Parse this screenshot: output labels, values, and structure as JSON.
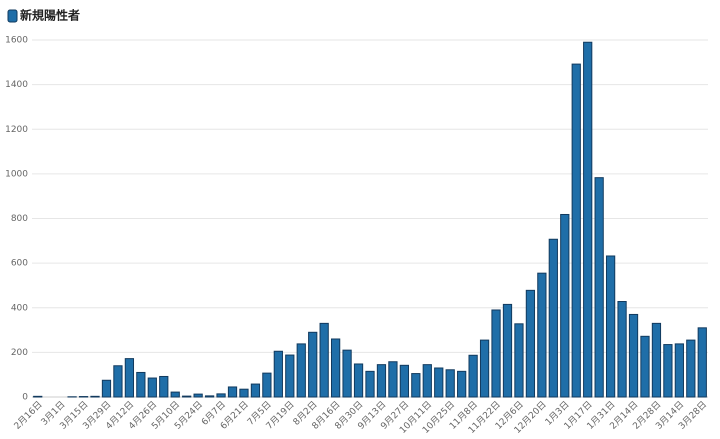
{
  "chart_data": {
    "type": "bar",
    "categories": [
      "2月16日",
      null,
      "3月1日",
      null,
      "3月15日",
      null,
      "3月29日",
      null,
      "4月12日",
      null,
      "4月26日",
      null,
      "5月10日",
      null,
      "5月24日",
      null,
      "6月7日",
      null,
      "6月21日",
      null,
      "7月5日",
      null,
      "7月19日",
      null,
      "8月2日",
      null,
      "8月16日",
      null,
      "8月30日",
      null,
      "9月13日",
      null,
      "9月27日",
      null,
      "10月11日",
      null,
      "10月25日",
      null,
      "11月8日",
      null,
      "11月22日",
      null,
      "12月6日",
      null,
      "12月20日",
      null,
      "1月3日",
      null,
      "1月17日",
      null,
      "1月31日",
      null,
      "2月14日",
      null,
      "2月28日",
      null,
      "3月14日",
      null,
      "3月28日"
    ],
    "series": [
      {
        "name": "新規陽性者",
        "color": "#1f6ea8",
        "values": [
          3,
          0,
          0,
          1,
          2,
          3,
          75,
          140,
          172,
          110,
          85,
          92,
          22,
          4,
          13,
          5,
          14,
          45,
          35,
          58,
          107,
          205,
          188,
          238,
          290,
          330,
          260,
          210,
          148,
          115,
          145,
          158,
          142,
          105,
          145,
          130,
          122,
          115,
          187,
          255,
          390,
          415,
          328,
          478,
          555,
          707,
          818,
          1492,
          1590,
          983,
          632,
          428,
          370,
          272,
          330,
          235,
          238,
          255,
          310
        ]
      }
    ],
    "ylim": [
      0,
      1600
    ],
    "yticks": [
      0,
      200,
      400,
      600,
      800,
      1000,
      1200,
      1400,
      1600
    ],
    "grid": true,
    "legend": "top-left"
  }
}
